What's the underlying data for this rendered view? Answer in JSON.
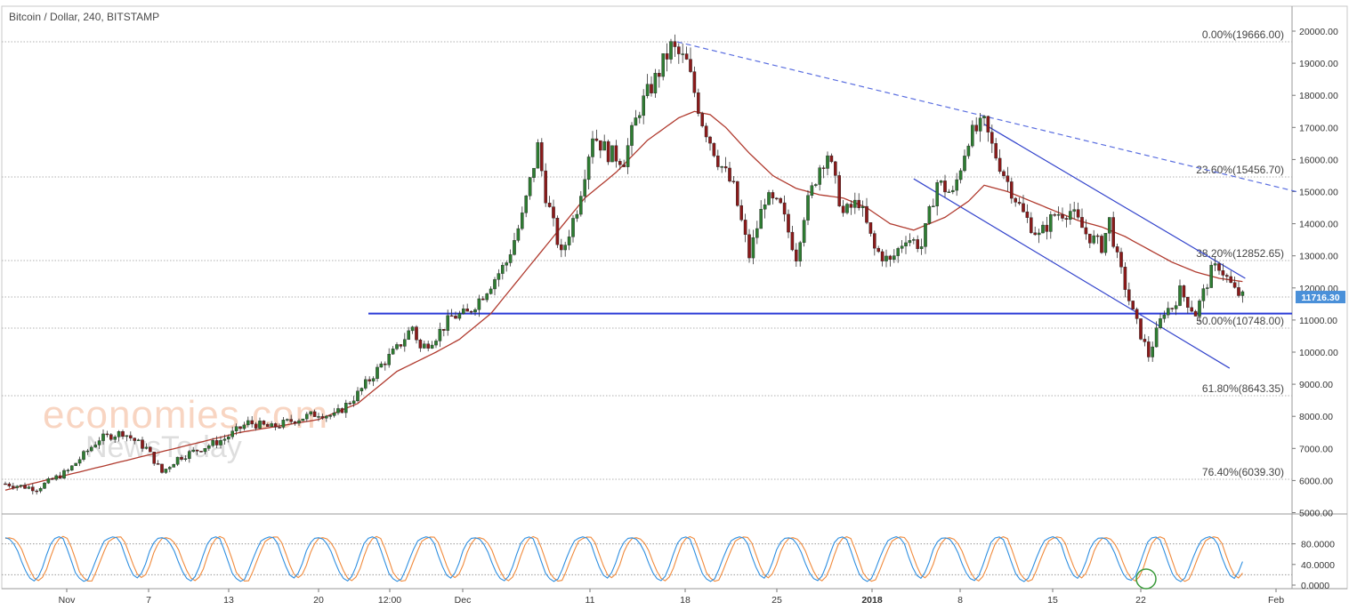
{
  "header": {
    "title": "Bitcoin / Dollar, 240, BITSTAMP"
  },
  "watermark": {
    "line1": "economies.com",
    "line2": "NewsToday"
  },
  "colors": {
    "bull": "#2e7d32",
    "bear": "#8b1a1a",
    "ma": "#b03a2e",
    "support": "#2a3bd6",
    "channel": "#3344cc",
    "grid": "#b0b0b0",
    "stochK": "#2f8fe0",
    "stochD": "#f08a3c",
    "priceTag": "#4a90d9"
  },
  "chart_data": {
    "type": "candlestick",
    "symbol": "Bitcoin / Dollar, 240, BITSTAMP",
    "ylim": [
      5000,
      20000
    ],
    "y_ticks": [
      "20000.00",
      "19000.00",
      "18000.00",
      "17000.00",
      "16000.00",
      "15000.00",
      "14000.00",
      "13000.00",
      "12000.00",
      "11000.00",
      "10000.00",
      "9000.00",
      "8000.00",
      "7000.00",
      "6000.00",
      "5000.00"
    ],
    "x_ticks": [
      "Nov",
      "7",
      "13",
      "20",
      "12:00",
      "Dec",
      "11",
      "18",
      "25",
      "2018",
      "8",
      "15",
      "22",
      "Feb"
    ],
    "last_price": "11716.30",
    "fib_levels": [
      {
        "label": "0.00%(19666.00)",
        "value": 19666.0
      },
      {
        "label": "23.60%(15456.70)",
        "value": 15456.7
      },
      {
        "label": "38.20%(12852.65)",
        "value": 12852.65
      },
      {
        "label": "50.00%(10748.00)",
        "value": 10748.0
      },
      {
        "label": "61.80%(8643.35)",
        "value": 8643.35
      },
      {
        "label": "76.40%(6039.30)",
        "value": 6039.3
      }
    ],
    "price_path": [
      [
        0,
        5900
      ],
      [
        4,
        5750
      ],
      [
        8,
        6300
      ],
      [
        12,
        7300
      ],
      [
        15,
        7500
      ],
      [
        18,
        7000
      ],
      [
        20,
        6250
      ],
      [
        22,
        6700
      ],
      [
        25,
        7000
      ],
      [
        28,
        7300
      ],
      [
        31,
        7800
      ],
      [
        34,
        7650
      ],
      [
        37,
        7900
      ],
      [
        40,
        8100
      ],
      [
        42,
        8000
      ],
      [
        45,
        8700
      ],
      [
        48,
        9600
      ],
      [
        50,
        10100
      ],
      [
        52,
        10800
      ],
      [
        53,
        10100
      ],
      [
        55,
        10500
      ],
      [
        57,
        11100
      ],
      [
        59,
        11200
      ],
      [
        61,
        11800
      ],
      [
        64,
        12800
      ],
      [
        66,
        14200
      ],
      [
        68,
        16400
      ],
      [
        69,
        14900
      ],
      [
        71,
        13000
      ],
      [
        73,
        14500
      ],
      [
        75,
        16800
      ],
      [
        77,
        16200
      ],
      [
        79,
        16000
      ],
      [
        81,
        17600
      ],
      [
        83,
        18500
      ],
      [
        85,
        19500
      ],
      [
        87,
        19000
      ],
      [
        89,
        17200
      ],
      [
        91,
        16000
      ],
      [
        93,
        15100
      ],
      [
        95,
        13000
      ],
      [
        97,
        14800
      ],
      [
        99,
        14500
      ],
      [
        101,
        13000
      ],
      [
        102,
        14300
      ],
      [
        104,
        15800
      ],
      [
        105,
        16200
      ],
      [
        107,
        14300
      ],
      [
        109,
        14700
      ],
      [
        111,
        13200
      ],
      [
        113,
        12800
      ],
      [
        115,
        13600
      ],
      [
        117,
        13300
      ],
      [
        119,
        15300
      ],
      [
        121,
        14900
      ],
      [
        123,
        16700
      ],
      [
        125,
        17100
      ],
      [
        126,
        16400
      ],
      [
        128,
        15300
      ],
      [
        130,
        14300
      ],
      [
        132,
        13600
      ],
      [
        134,
        14300
      ],
      [
        136,
        14400
      ],
      [
        138,
        13700
      ],
      [
        140,
        13300
      ],
      [
        141,
        14100
      ],
      [
        142,
        12900
      ],
      [
        144,
        11200
      ],
      [
        146,
        9900
      ],
      [
        148,
        11300
      ],
      [
        149,
        11400
      ],
      [
        150,
        11900
      ],
      [
        152,
        11200
      ],
      [
        154,
        12500
      ],
      [
        155,
        12700
      ],
      [
        157,
        11900
      ],
      [
        158,
        11716
      ]
    ],
    "ma_path": [
      [
        0,
        5700
      ],
      [
        10,
        6300
      ],
      [
        20,
        6900
      ],
      [
        30,
        7500
      ],
      [
        40,
        7900
      ],
      [
        45,
        8400
      ],
      [
        50,
        9400
      ],
      [
        55,
        10000
      ],
      [
        58,
        10400
      ],
      [
        62,
        11200
      ],
      [
        66,
        12400
      ],
      [
        70,
        13600
      ],
      [
        74,
        14800
      ],
      [
        78,
        15600
      ],
      [
        82,
        16600
      ],
      [
        86,
        17300
      ],
      [
        88,
        17500
      ],
      [
        90,
        17400
      ],
      [
        92,
        17000
      ],
      [
        95,
        16200
      ],
      [
        98,
        15500
      ],
      [
        101,
        15100
      ],
      [
        104,
        14900
      ],
      [
        107,
        14800
      ],
      [
        110,
        14500
      ],
      [
        113,
        14000
      ],
      [
        116,
        13800
      ],
      [
        118,
        14000
      ],
      [
        120,
        14200
      ],
      [
        123,
        14700
      ],
      [
        125,
        15200
      ],
      [
        128,
        15000
      ],
      [
        131,
        14700
      ],
      [
        134,
        14400
      ],
      [
        137,
        14100
      ],
      [
        140,
        13900
      ],
      [
        143,
        13600
      ],
      [
        146,
        13200
      ],
      [
        149,
        12800
      ],
      [
        152,
        12500
      ],
      [
        155,
        12300
      ],
      [
        158,
        12200
      ]
    ],
    "support_line": 11200,
    "downtrend_dashed": [
      [
        85,
        19666
      ],
      [
        165,
        15000
      ]
    ],
    "channel_upper": [
      [
        125,
        17100
      ],
      [
        158,
        12300
      ]
    ],
    "channel_lower": [
      [
        116,
        15400
      ],
      [
        156,
        9500
      ]
    ],
    "oscillator": {
      "name": "stochastic",
      "ylim": [
        0,
        100
      ],
      "y_ticks": [
        "80.0000",
        "40.0000",
        "0.0000"
      ],
      "levels": [
        80,
        20
      ],
      "k_cycle": [
        92,
        88,
        70,
        40,
        15,
        8,
        20,
        55,
        85,
        95,
        90,
        60,
        25,
        10,
        5,
        30,
        60,
        85,
        92,
        95,
        80,
        45,
        20,
        12,
        35,
        70,
        90
      ]
    }
  }
}
